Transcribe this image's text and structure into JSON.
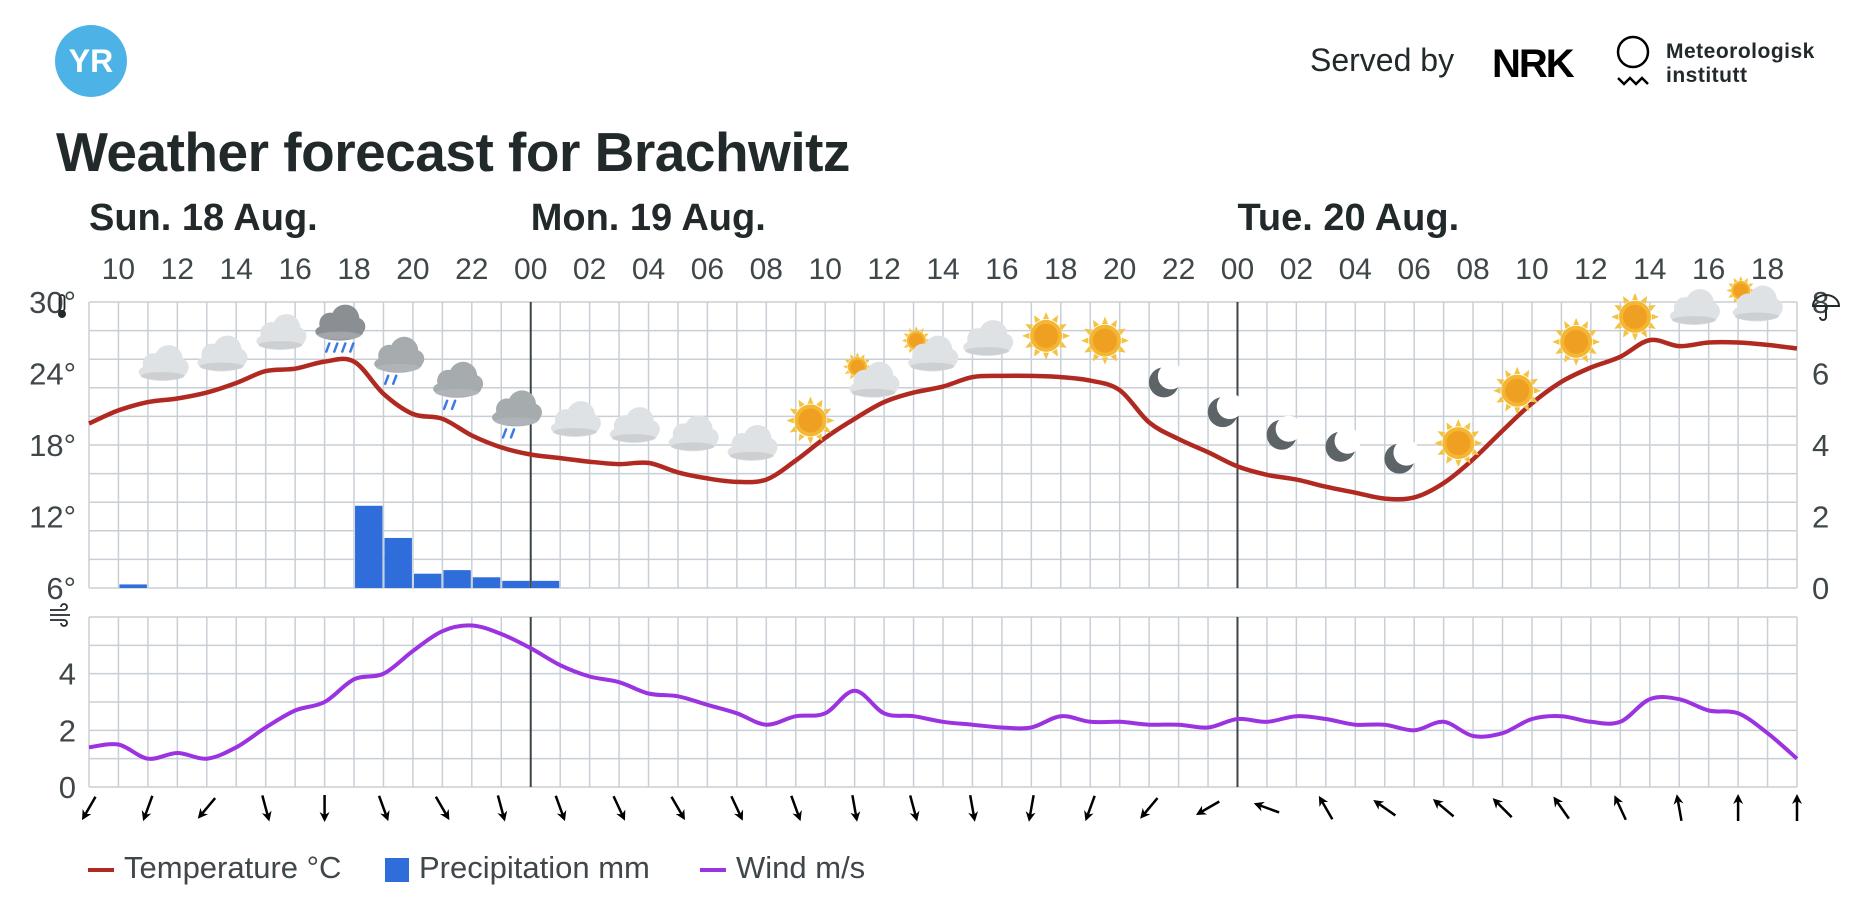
{
  "header": {
    "brand": "YR",
    "served_by": "Served by",
    "nrk": "NRK",
    "met_line1": "Meteorologisk",
    "met_line2": "institutt",
    "title": "Weather forecast for Brachwitz"
  },
  "colors": {
    "temperature": "#b02a22",
    "precipitation": "#2f6ddb",
    "wind": "#9b33e0",
    "grid": "#c8cfd6",
    "yr": "#4db3e6"
  },
  "legend": [
    {
      "key": "temperature",
      "label": "Temperature °C"
    },
    {
      "key": "precipitation",
      "label": "Precipitation mm"
    },
    {
      "key": "wind",
      "label": "Wind m/s"
    }
  ],
  "chart_data": {
    "type": "line",
    "days": [
      {
        "label": "Sun. 18 Aug.",
        "start_hour": 9
      },
      {
        "label": "Mon. 19 Aug.",
        "start_hour": 24
      },
      {
        "label": "Tue. 20 Aug.",
        "start_hour": 48
      }
    ],
    "hour_range": [
      9,
      67
    ],
    "hour_tick_labels": [
      "10",
      "12",
      "14",
      "16",
      "18",
      "20",
      "22",
      "00",
      "02",
      "04",
      "06",
      "08",
      "10",
      "12",
      "14",
      "16",
      "18",
      "20",
      "22",
      "00",
      "02",
      "04",
      "06",
      "08",
      "10",
      "12",
      "14",
      "16",
      "18"
    ],
    "temperature": {
      "unit": "°C",
      "ylim": [
        6,
        30
      ],
      "ticks": [
        "30°",
        "24°",
        "18°",
        "12°",
        "6°"
      ],
      "tick_values": [
        30,
        24,
        18,
        12,
        6
      ],
      "values": [
        19.8,
        20.9,
        21.6,
        21.9,
        22.4,
        23.2,
        24.2,
        24.4,
        25.0,
        25.0,
        22.3,
        20.6,
        20.2,
        18.8,
        17.8,
        17.2,
        16.9,
        16.6,
        16.4,
        16.5,
        15.7,
        15.2,
        14.9,
        15.1,
        16.7,
        18.6,
        20.2,
        21.6,
        22.4,
        22.9,
        23.7,
        23.8,
        23.8,
        23.7,
        23.4,
        22.6,
        19.9,
        18.5,
        17.4,
        16.2,
        15.5,
        15.1,
        14.5,
        14.0,
        13.5,
        13.6,
        14.8,
        16.8,
        19.2,
        21.5,
        23.3,
        24.5,
        25.4,
        26.8,
        26.3,
        26.6,
        26.6,
        26.4,
        26.1
      ]
    },
    "precipitation": {
      "unit": "mm",
      "ylim": [
        0,
        8
      ],
      "ticks": [
        "8",
        "6",
        "4",
        "2",
        "0"
      ],
      "tick_values": [
        8,
        6,
        4,
        2,
        0
      ],
      "values": [
        0,
        0.1,
        0,
        0,
        0,
        0,
        0,
        0,
        0,
        2.3,
        1.4,
        0.4,
        0.5,
        0.3,
        0.2,
        0.2,
        0,
        0,
        0,
        0,
        0,
        0,
        0,
        0,
        0,
        0,
        0,
        0,
        0,
        0,
        0,
        0,
        0,
        0,
        0,
        0,
        0,
        0,
        0,
        0,
        0,
        0,
        0,
        0,
        0,
        0,
        0,
        0,
        0,
        0,
        0,
        0,
        0,
        0,
        0,
        0,
        0,
        0
      ]
    },
    "wind": {
      "unit": "m/s",
      "ylim": [
        0,
        6
      ],
      "ticks": [
        "4",
        "2",
        "0"
      ],
      "tick_values": [
        4,
        2,
        0
      ],
      "values": [
        1.4,
        1.5,
        1.0,
        1.2,
        1.0,
        1.4,
        2.1,
        2.7,
        3.0,
        3.8,
        4.0,
        4.8,
        5.5,
        5.7,
        5.4,
        4.9,
        4.3,
        3.9,
        3.7,
        3.3,
        3.2,
        2.9,
        2.6,
        2.2,
        2.5,
        2.6,
        3.4,
        2.6,
        2.5,
        2.3,
        2.2,
        2.1,
        2.1,
        2.5,
        2.3,
        2.3,
        2.2,
        2.2,
        2.1,
        2.4,
        2.3,
        2.5,
        2.4,
        2.2,
        2.2,
        2.0,
        2.3,
        1.8,
        1.9,
        2.4,
        2.5,
        2.3,
        2.3,
        3.1,
        3.1,
        2.7,
        2.6,
        1.9,
        1.0
      ]
    },
    "symbols": [
      {
        "hour": 11,
        "icon": "cloudy-icon"
      },
      {
        "hour": 13,
        "icon": "cloudy-icon"
      },
      {
        "hour": 15,
        "icon": "cloudy-icon"
      },
      {
        "hour": 17,
        "icon": "rain-icon"
      },
      {
        "hour": 19,
        "icon": "light-rain-icon"
      },
      {
        "hour": 21,
        "icon": "light-rain-icon"
      },
      {
        "hour": 23,
        "icon": "light-rain-icon"
      },
      {
        "hour": 25,
        "icon": "cloudy-icon"
      },
      {
        "hour": 27,
        "icon": "cloudy-icon"
      },
      {
        "hour": 29,
        "icon": "cloudy-icon"
      },
      {
        "hour": 31,
        "icon": "cloudy-icon"
      },
      {
        "hour": 33,
        "icon": "sun-icon"
      },
      {
        "hour": 35,
        "icon": "partly-cloudy-icon"
      },
      {
        "hour": 37,
        "icon": "partly-cloudy-icon"
      },
      {
        "hour": 39,
        "icon": "cloudy-icon"
      },
      {
        "hour": 41,
        "icon": "sun-icon"
      },
      {
        "hour": 43,
        "icon": "sun-icon"
      },
      {
        "hour": 45,
        "icon": "moon-icon"
      },
      {
        "hour": 47,
        "icon": "moon-icon"
      },
      {
        "hour": 49,
        "icon": "moon-icon"
      },
      {
        "hour": 51,
        "icon": "moon-icon"
      },
      {
        "hour": 53,
        "icon": "moon-icon"
      },
      {
        "hour": 55,
        "icon": "sun-icon"
      },
      {
        "hour": 57,
        "icon": "sun-icon"
      },
      {
        "hour": 59,
        "icon": "sun-icon"
      },
      {
        "hour": 61,
        "icon": "sun-icon"
      },
      {
        "hour": 63,
        "icon": "cloudy-icon"
      },
      {
        "hour": 65,
        "icon": "partly-cloudy-icon"
      }
    ],
    "wind_directions_deg": [
      30,
      20,
      40,
      345,
      0,
      340,
      330,
      345,
      340,
      335,
      330,
      335,
      340,
      350,
      345,
      350,
      10,
      20,
      40,
      60,
      110,
      150,
      125,
      130,
      135,
      145,
      155,
      170,
      180,
      180
    ]
  }
}
